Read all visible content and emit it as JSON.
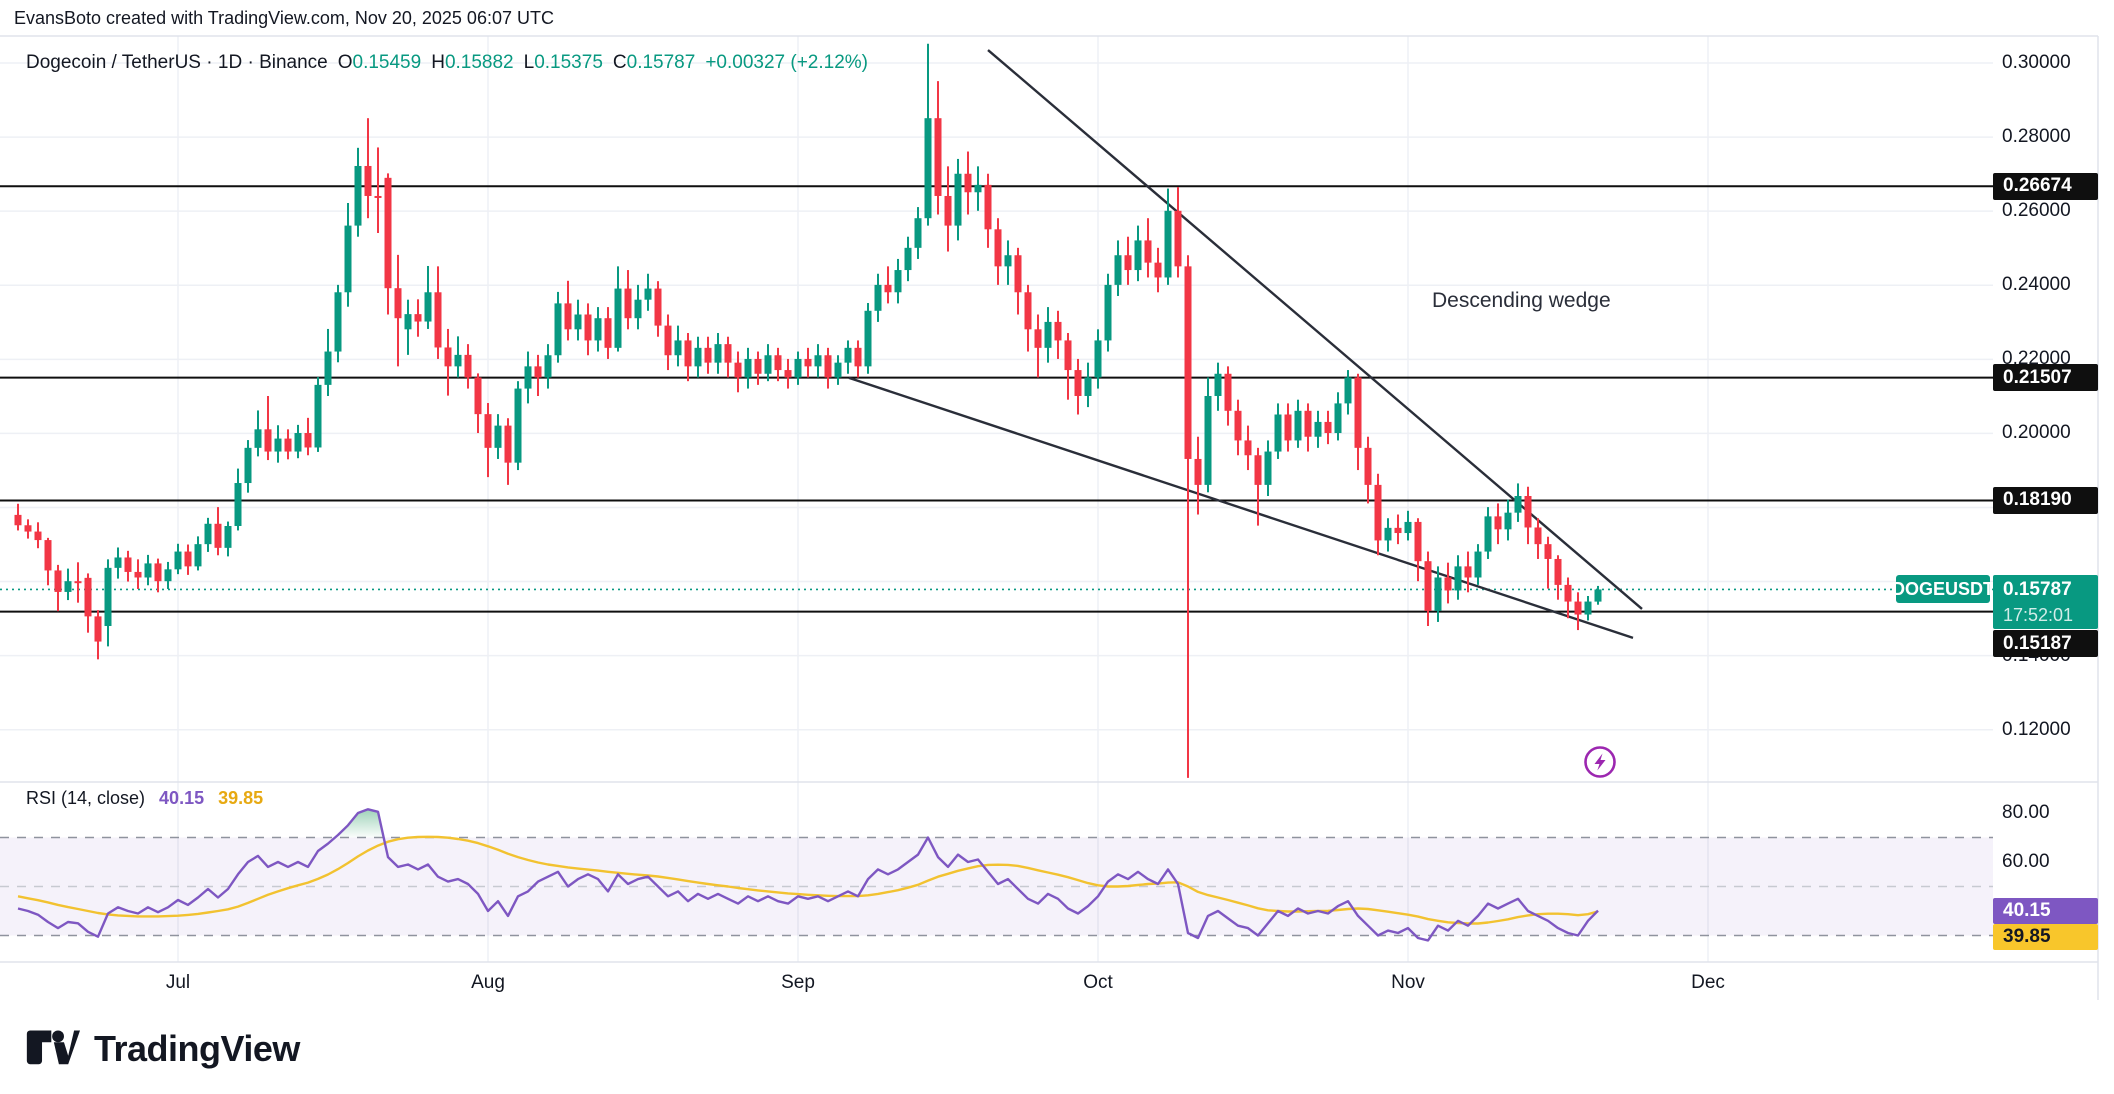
{
  "header": {
    "note": "EvansBoto created with TradingView.com, Nov 20, 2025 06:07 UTC"
  },
  "legend": {
    "symbol": "Dogecoin / TetherUS",
    "sep1": "·",
    "interval": "1D",
    "sep2": "·",
    "exchange": "Binance",
    "o_label": "O",
    "o": "0.15459",
    "h_label": "H",
    "h": "0.15882",
    "l_label": "L",
    "l": "0.15375",
    "c_label": "C",
    "c": "0.15787",
    "change": "+0.00327 (+2.12%)"
  },
  "annotations": {
    "wedge_label": "Descending wedge",
    "lightning_icon": "lightning-bolt-in-circle"
  },
  "rsi_legend": {
    "title": "RSI (14, close)",
    "value": "40.15",
    "ma_value": "39.85"
  },
  "price_scale": {
    "ticks": [
      {
        "label": "0.30000",
        "price": 0.3
      },
      {
        "label": "0.28000",
        "price": 0.28
      },
      {
        "label": "0.26000",
        "price": 0.26
      },
      {
        "label": "0.24000",
        "price": 0.24
      },
      {
        "label": "0.22000",
        "price": 0.22
      },
      {
        "label": "0.20000",
        "price": 0.2
      },
      {
        "label": "0.14000",
        "price": 0.14
      },
      {
        "label": "0.12000",
        "price": 0.12
      }
    ],
    "level_badges": [
      {
        "label": "0.26674",
        "price": 0.26674
      },
      {
        "label": "0.21507",
        "price": 0.21507
      },
      {
        "label": "0.18190",
        "price": 0.1819
      }
    ],
    "below_badge": {
      "label": "0.15187",
      "price": 0.15187
    },
    "symbol_badge": {
      "label": "DOGEUSDT",
      "price_label": "0.15787",
      "countdown": "17:52:01",
      "price": 0.15787
    }
  },
  "rsi_scale": {
    "ticks": [
      {
        "label": "80.00",
        "v": 80
      },
      {
        "label": "60.00",
        "v": 60
      }
    ],
    "value_badge": {
      "label": "40.15",
      "v": 40.15
    },
    "ma_badge": {
      "label": "39.85",
      "v": 39.85
    }
  },
  "time_axis": {
    "months": [
      {
        "label": "Jul",
        "i": 16
      },
      {
        "label": "Aug",
        "i": 47
      },
      {
        "label": "Sep",
        "i": 78
      },
      {
        "label": "Oct",
        "i": 108
      },
      {
        "label": "Nov",
        "i": 139
      },
      {
        "label": "Dec",
        "i": 169
      }
    ]
  },
  "logo": {
    "text": "TradingView"
  },
  "colors": {
    "up": "#089981",
    "down": "#F23645",
    "level_line": "#0f0f0f",
    "trendline": "#2a2e39",
    "grid": "#eef0f5",
    "rsi_line": "#7E57C2",
    "rsi_ma_line": "#F2C230",
    "rsi_band": "rgba(126,87,194,0.08)",
    "dashed_outer": "#8f939e",
    "dashed_mid": "#c7cad1",
    "last_price": "#089981",
    "lightning": "#9C27B0",
    "separator": "#e0e3eb"
  },
  "chart_data": {
    "type": "candlestick+rsi",
    "symbol": "DOGEUSDT",
    "timeframe": "1D",
    "title": "Dogecoin / TetherUS · 1D · Binance",
    "ylim": [
      0.107,
      0.31
    ],
    "rsi_ylim": [
      19,
      93
    ],
    "legend_note": "x positions: candle i at px 18+10*i; price p at px y 63+(0.30-p)*3704; rsi v at px y 813+(80-v)*2.45",
    "levels": [
      0.26674,
      0.21507,
      0.1819,
      0.15187
    ],
    "last_price": 0.15787,
    "rsi_levels": {
      "upper": 70,
      "middle": 50,
      "lower": 30
    },
    "trendlines": [
      {
        "name": "wedge-upper",
        "i1": 97.0,
        "p1": 0.3035,
        "i2": 162.4,
        "p2": 0.1526
      },
      {
        "name": "wedge-lower",
        "i1": 83.1,
        "p1": 0.215,
        "i2": 161.5,
        "p2": 0.1448
      }
    ],
    "candles": [
      [
        0.178,
        0.181,
        0.1738,
        0.1752
      ],
      [
        0.1752,
        0.1768,
        0.1716,
        0.1735
      ],
      [
        0.1735,
        0.176,
        0.169,
        0.1712
      ],
      [
        0.1712,
        0.1718,
        0.159,
        0.163
      ],
      [
        0.163,
        0.1645,
        0.152,
        0.1572
      ],
      [
        0.1572,
        0.1635,
        0.155,
        0.1601
      ],
      [
        0.1601,
        0.1652,
        0.1543,
        0.1598
      ],
      [
        0.161,
        0.1622,
        0.1462,
        0.1506
      ],
      [
        0.1506,
        0.1523,
        0.139,
        0.1438
      ],
      [
        0.148,
        0.166,
        0.1425,
        0.1637
      ],
      [
        0.1637,
        0.1692,
        0.1608,
        0.1665
      ],
      [
        0.1665,
        0.1683,
        0.16,
        0.1626
      ],
      [
        0.1626,
        0.166,
        0.158,
        0.1611
      ],
      [
        0.1611,
        0.1672,
        0.159,
        0.1649
      ],
      [
        0.1649,
        0.1662,
        0.1571,
        0.1601
      ],
      [
        0.1601,
        0.1653,
        0.158,
        0.1633
      ],
      [
        0.1633,
        0.1702,
        0.162,
        0.1681
      ],
      [
        0.1681,
        0.17,
        0.1618,
        0.1641
      ],
      [
        0.1641,
        0.1722,
        0.163,
        0.1701
      ],
      [
        0.1701,
        0.1772,
        0.168,
        0.1756
      ],
      [
        0.1756,
        0.1801,
        0.1671,
        0.1691
      ],
      [
        0.1691,
        0.1762,
        0.1668,
        0.175
      ],
      [
        0.175,
        0.1905,
        0.1738,
        0.1866
      ],
      [
        0.1866,
        0.1982,
        0.184,
        0.1961
      ],
      [
        0.1961,
        0.2062,
        0.1938,
        0.2011
      ],
      [
        0.2011,
        0.2101,
        0.1928,
        0.1951
      ],
      [
        0.1951,
        0.2022,
        0.1921,
        0.1986
      ],
      [
        0.1986,
        0.2011,
        0.193,
        0.1951
      ],
      [
        0.1951,
        0.2023,
        0.1933,
        0.2001
      ],
      [
        0.2001,
        0.2042,
        0.1941,
        0.1962
      ],
      [
        0.1962,
        0.2152,
        0.195,
        0.2131
      ],
      [
        0.2131,
        0.2282,
        0.2101,
        0.2221
      ],
      [
        0.2221,
        0.2401,
        0.2192,
        0.2381
      ],
      [
        0.2381,
        0.2622,
        0.2342,
        0.2561
      ],
      [
        0.2561,
        0.2771,
        0.2531,
        0.2722
      ],
      [
        0.2722,
        0.2851,
        0.2581,
        0.2641
      ],
      [
        0.2641,
        0.2772,
        0.2541,
        0.2636
      ],
      [
        0.269,
        0.2702,
        0.2321,
        0.2392
      ],
      [
        0.2392,
        0.2482,
        0.2181,
        0.2311
      ],
      [
        0.2281,
        0.2361,
        0.2212,
        0.2322
      ],
      [
        0.2322,
        0.2362,
        0.2261,
        0.2302
      ],
      [
        0.2302,
        0.2452,
        0.2282,
        0.2381
      ],
      [
        0.2381,
        0.2451,
        0.2201,
        0.2232
      ],
      [
        0.2232,
        0.2282,
        0.2102,
        0.2181
      ],
      [
        0.2181,
        0.2262,
        0.2151,
        0.2212
      ],
      [
        0.2212,
        0.2241,
        0.2121,
        0.2151
      ],
      [
        0.2151,
        0.2162,
        0.2001,
        0.2052
      ],
      [
        0.2052,
        0.2082,
        0.1882,
        0.1961
      ],
      [
        0.1961,
        0.2052,
        0.1931,
        0.2021
      ],
      [
        0.2021,
        0.2041,
        0.1861,
        0.1921
      ],
      [
        0.1921,
        0.2141,
        0.1901,
        0.2121
      ],
      [
        0.2121,
        0.2221,
        0.2081,
        0.2181
      ],
      [
        0.2181,
        0.2212,
        0.2101,
        0.2151
      ],
      [
        0.2151,
        0.2241,
        0.2121,
        0.2211
      ],
      [
        0.2211,
        0.2382,
        0.2191,
        0.2351
      ],
      [
        0.2351,
        0.2412,
        0.2251,
        0.2281
      ],
      [
        0.2281,
        0.2361,
        0.2251,
        0.2321
      ],
      [
        0.2321,
        0.2351,
        0.2211,
        0.2251
      ],
      [
        0.2251,
        0.2341,
        0.2221,
        0.2311
      ],
      [
        0.2311,
        0.2341,
        0.2201,
        0.2231
      ],
      [
        0.2231,
        0.2451,
        0.2221,
        0.2391
      ],
      [
        0.2391,
        0.2441,
        0.2281,
        0.2311
      ],
      [
        0.2311,
        0.2401,
        0.2281,
        0.2361
      ],
      [
        0.2361,
        0.2431,
        0.2331,
        0.2391
      ],
      [
        0.2391,
        0.2411,
        0.2261,
        0.2291
      ],
      [
        0.2291,
        0.2321,
        0.2171,
        0.2211
      ],
      [
        0.2211,
        0.2291,
        0.2181,
        0.2251
      ],
      [
        0.2251,
        0.2271,
        0.2141,
        0.2181
      ],
      [
        0.2181,
        0.2261,
        0.2151,
        0.2231
      ],
      [
        0.2231,
        0.2261,
        0.2161,
        0.2191
      ],
      [
        0.2191,
        0.2271,
        0.2161,
        0.2241
      ],
      [
        0.2241,
        0.2261,
        0.2151,
        0.2191
      ],
      [
        0.2191,
        0.2221,
        0.2111,
        0.2151
      ],
      [
        0.2151,
        0.2231,
        0.2121,
        0.2201
      ],
      [
        0.2201,
        0.2221,
        0.2131,
        0.2161
      ],
      [
        0.2161,
        0.2241,
        0.2141,
        0.2211
      ],
      [
        0.2211,
        0.2231,
        0.2141,
        0.2171
      ],
      [
        0.2171,
        0.2201,
        0.2121,
        0.2151
      ],
      [
        0.2151,
        0.2221,
        0.2131,
        0.2201
      ],
      [
        0.2201,
        0.2231,
        0.2151,
        0.2181
      ],
      [
        0.2181,
        0.2241,
        0.2151,
        0.2211
      ],
      [
        0.2211,
        0.2231,
        0.2121,
        0.2151
      ],
      [
        0.2151,
        0.2211,
        0.2131,
        0.2191
      ],
      [
        0.2191,
        0.2251,
        0.2161,
        0.2231
      ],
      [
        0.2231,
        0.2251,
        0.2151,
        0.2181
      ],
      [
        0.2181,
        0.2352,
        0.2161,
        0.2331
      ],
      [
        0.2331,
        0.2431,
        0.2301,
        0.2401
      ],
      [
        0.2401,
        0.2451,
        0.2351,
        0.2381
      ],
      [
        0.2381,
        0.2471,
        0.2351,
        0.2441
      ],
      [
        0.2441,
        0.2531,
        0.2411,
        0.2501
      ],
      [
        0.2501,
        0.2611,
        0.2471,
        0.2581
      ],
      [
        0.2581,
        0.3052,
        0.2561,
        0.2851
      ],
      [
        0.2851,
        0.2951,
        0.2591,
        0.2641
      ],
      [
        0.2641,
        0.2721,
        0.2491,
        0.2561
      ],
      [
        0.2561,
        0.2741,
        0.2521,
        0.2701
      ],
      [
        0.2701,
        0.2761,
        0.2591,
        0.2651
      ],
      [
        0.2651,
        0.2721,
        0.2601,
        0.2671
      ],
      [
        0.2671,
        0.2701,
        0.2501,
        0.2551
      ],
      [
        0.2551,
        0.2581,
        0.2401,
        0.2451
      ],
      [
        0.2451,
        0.2521,
        0.2401,
        0.2481
      ],
      [
        0.2481,
        0.2501,
        0.2321,
        0.2381
      ],
      [
        0.2381,
        0.2401,
        0.2221,
        0.2281
      ],
      [
        0.2281,
        0.2321,
        0.2151,
        0.2231
      ],
      [
        0.2231,
        0.2341,
        0.2191,
        0.2301
      ],
      [
        0.2301,
        0.2331,
        0.2201,
        0.2251
      ],
      [
        0.2251,
        0.2271,
        0.2091,
        0.2171
      ],
      [
        0.2171,
        0.2201,
        0.2051,
        0.2101
      ],
      [
        0.2101,
        0.2191,
        0.2071,
        0.2151
      ],
      [
        0.2151,
        0.2281,
        0.2121,
        0.2251
      ],
      [
        0.2251,
        0.2431,
        0.2221,
        0.2401
      ],
      [
        0.2401,
        0.2521,
        0.2371,
        0.2481
      ],
      [
        0.2481,
        0.2531,
        0.2401,
        0.2441
      ],
      [
        0.2441,
        0.2561,
        0.2411,
        0.2521
      ],
      [
        0.2521,
        0.2581,
        0.2421,
        0.2461
      ],
      [
        0.2461,
        0.2501,
        0.2381,
        0.2421
      ],
      [
        0.2421,
        0.2661,
        0.2401,
        0.2601
      ],
      [
        0.2601,
        0.2665,
        0.2421,
        0.2451
      ],
      [
        0.2451,
        0.2481,
        0.107,
        0.1931
      ],
      [
        0.1931,
        0.1991,
        0.1781,
        0.1861
      ],
      [
        0.1861,
        0.2151,
        0.1841,
        0.2101
      ],
      [
        0.2101,
        0.2191,
        0.2061,
        0.2161
      ],
      [
        0.2161,
        0.2181,
        0.2021,
        0.2061
      ],
      [
        0.2061,
        0.2091,
        0.1941,
        0.1981
      ],
      [
        0.1981,
        0.2021,
        0.1901,
        0.1941
      ],
      [
        0.1941,
        0.1961,
        0.1751,
        0.1861
      ],
      [
        0.1861,
        0.1981,
        0.1831,
        0.1951
      ],
      [
        0.1951,
        0.2081,
        0.1931,
        0.2051
      ],
      [
        0.2051,
        0.2081,
        0.1951,
        0.1981
      ],
      [
        0.1981,
        0.2091,
        0.1961,
        0.2061
      ],
      [
        0.2061,
        0.2081,
        0.1951,
        0.1991
      ],
      [
        0.1991,
        0.2061,
        0.1961,
        0.2031
      ],
      [
        0.2031,
        0.2061,
        0.1971,
        0.2001
      ],
      [
        0.2001,
        0.2111,
        0.1981,
        0.2081
      ],
      [
        0.2081,
        0.2171,
        0.2051,
        0.2151
      ],
      [
        0.2151,
        0.2161,
        0.1901,
        0.1961
      ],
      [
        0.1961,
        0.1991,
        0.1811,
        0.1861
      ],
      [
        0.1861,
        0.1891,
        0.1671,
        0.1711
      ],
      [
        0.1711,
        0.1771,
        0.1681,
        0.1745
      ],
      [
        0.1745,
        0.1781,
        0.1701,
        0.1731
      ],
      [
        0.1731,
        0.1791,
        0.1711,
        0.1761
      ],
      [
        0.1761,
        0.1771,
        0.1601,
        0.1655
      ],
      [
        0.1655,
        0.1681,
        0.148,
        0.1521
      ],
      [
        0.1521,
        0.1641,
        0.1491,
        0.1611
      ],
      [
        0.1611,
        0.1651,
        0.1541,
        0.1576
      ],
      [
        0.1576,
        0.1671,
        0.1551,
        0.1641
      ],
      [
        0.1641,
        0.1681,
        0.1571,
        0.1611
      ],
      [
        0.1611,
        0.1701,
        0.1591,
        0.1681
      ],
      [
        0.1681,
        0.1801,
        0.1661,
        0.1776
      ],
      [
        0.1776,
        0.1811,
        0.1701,
        0.1741
      ],
      [
        0.1741,
        0.1821,
        0.1711,
        0.1786
      ],
      [
        0.1786,
        0.1865,
        0.1761,
        0.1831
      ],
      [
        0.1831,
        0.1856,
        0.1701,
        0.1746
      ],
      [
        0.1746,
        0.1771,
        0.1661,
        0.1701
      ],
      [
        0.1701,
        0.1721,
        0.1581,
        0.1661
      ],
      [
        0.1661,
        0.1671,
        0.1551,
        0.1591
      ],
      [
        0.1591,
        0.1611,
        0.1501,
        0.1546
      ],
      [
        0.1546,
        0.1571,
        0.1469,
        0.1511
      ],
      [
        0.1511,
        0.1561,
        0.1495,
        0.1546
      ],
      [
        0.15459,
        0.15882,
        0.15375,
        0.15787
      ]
    ],
    "rsi": [
      41,
      40,
      38.5,
      35.5,
      33,
      35.5,
      35,
      31.5,
      29.5,
      39,
      41.5,
      40,
      39,
      41.5,
      39.5,
      41.5,
      44.5,
      42.5,
      45.5,
      49,
      45.5,
      49,
      55,
      60,
      62.5,
      58,
      60,
      58,
      60,
      58,
      64.5,
      67.5,
      71,
      75,
      80,
      81.5,
      80.5,
      62,
      58,
      59,
      57,
      59,
      54,
      52,
      53,
      51,
      47,
      40,
      44,
      38,
      46,
      48,
      52,
      54,
      56,
      50,
      53,
      55,
      53,
      48,
      55,
      51,
      53,
      54,
      50,
      46,
      48,
      44,
      47,
      45,
      47,
      45,
      43,
      46,
      44,
      46,
      44,
      43,
      46,
      45,
      46,
      44,
      46,
      48,
      46,
      53,
      57,
      55,
      57,
      60,
      63,
      70,
      62,
      58,
      63,
      60,
      61,
      56,
      51,
      53,
      49,
      45,
      43,
      47,
      45,
      41,
      39,
      42,
      46,
      52,
      55,
      53,
      56,
      53,
      51,
      57,
      51,
      31,
      29,
      38,
      40,
      37,
      34,
      33,
      30,
      35,
      40,
      38,
      41,
      39,
      40,
      39,
      42,
      44,
      38,
      34,
      30,
      32,
      31,
      33,
      29,
      28,
      34,
      32,
      36,
      34,
      38,
      43,
      41,
      43,
      45,
      40,
      38,
      36,
      33,
      31,
      30,
      36,
      40.15
    ],
    "rsi_ma": [
      46,
      45.2,
      44.4,
      43.5,
      42.5,
      41.6,
      40.8,
      40.0,
      39.2,
      38.6,
      38.2,
      38.0,
      37.8,
      37.8,
      37.8,
      37.9,
      38.1,
      38.4,
      38.8,
      39.4,
      40.0,
      40.7,
      41.8,
      43.3,
      45.0,
      46.6,
      48.0,
      49.3,
      50.5,
      51.6,
      53.1,
      54.9,
      57.1,
      59.6,
      62.3,
      64.7,
      66.7,
      68.3,
      69.3,
      69.9,
      70.2,
      70.3,
      70.2,
      69.9,
      69.4,
      68.7,
      67.7,
      66.4,
      65.0,
      63.4,
      62.0,
      60.8,
      59.8,
      59.0,
      58.4,
      57.8,
      57.3,
      56.9,
      56.5,
      56.0,
      55.6,
      55.2,
      54.8,
      54.5,
      54.1,
      53.5,
      52.9,
      52.2,
      51.6,
      51.0,
      50.5,
      50.0,
      49.4,
      48.9,
      48.4,
      48.0,
      47.6,
      47.2,
      46.9,
      46.6,
      46.4,
      46.2,
      46.1,
      46.1,
      46.1,
      46.4,
      47.0,
      47.7,
      48.5,
      49.5,
      50.7,
      52.4,
      54.0,
      55.2,
      56.4,
      57.4,
      58.3,
      58.8,
      58.9,
      58.8,
      58.4,
      57.6,
      56.6,
      55.7,
      54.8,
      53.8,
      52.6,
      51.4,
      50.5,
      50.0,
      50.0,
      50.2,
      50.6,
      51.0,
      51.2,
      51.6,
      51.7,
      50.0,
      47.8,
      46.5,
      45.5,
      44.5,
      43.4,
      42.3,
      41.1,
      40.3,
      40.0,
      39.8,
      39.8,
      39.9,
      40.0,
      40.1,
      40.4,
      40.8,
      41.0,
      40.8,
      40.3,
      39.7,
      39.1,
      38.5,
      37.7,
      36.7,
      36.0,
      35.4,
      35.1,
      34.9,
      34.9,
      35.3,
      35.9,
      36.6,
      37.5,
      38.2,
      38.7,
      38.9,
      38.9,
      38.7,
      38.3,
      38.7,
      39.85
    ]
  }
}
